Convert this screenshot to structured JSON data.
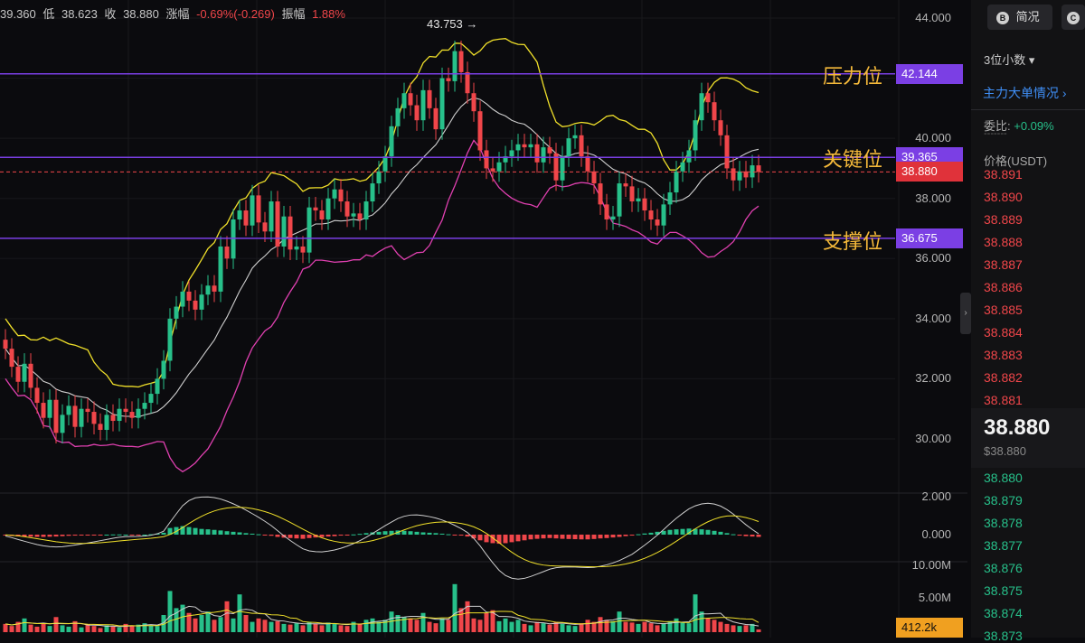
{
  "header": {
    "open_partial": "39.360",
    "low_label": "低",
    "low": "38.623",
    "close_label": "收",
    "close": "38.880",
    "change_label": "涨幅",
    "change": "-0.69%(-0.269)",
    "amp_label": "振幅",
    "amp": "1.88%"
  },
  "annotations": {
    "peak_value": "43.753",
    "peak_arrow": "→",
    "resistance_text": "压力位",
    "key_text": "关键位",
    "support_text": "支撑位"
  },
  "price_tags": {
    "resistance": "42.144",
    "key": "39.365",
    "current": "38.880",
    "support": "36.675",
    "volume": "412.2k"
  },
  "axis": {
    "price": [
      "44.000",
      "42.000",
      "40.000",
      "38.000",
      "36.000",
      "34.000",
      "32.000",
      "30.000"
    ],
    "macd": [
      "2.000",
      "0.000"
    ],
    "volume": [
      "10.00M",
      "5.00M"
    ]
  },
  "colors": {
    "up": "#27c08a",
    "down": "#f0464a",
    "level_line": "#7b3fe4",
    "upper_band": "#f0e02a",
    "mid_band": "#cfcfcf",
    "lower_band": "#e040b0",
    "label_gold": "#f5b93a",
    "panel_accent": "#3f8ef5"
  },
  "panel": {
    "btn_simple": "简况",
    "btn_simple_icon": "B",
    "btn_other_icon": "C",
    "decimals": "3位小数",
    "decimals_arrow": "▾",
    "big_orders": "主力大单情况",
    "big_orders_arrow": "›",
    "commission_label": "委比:",
    "commission_value": "+0.09%",
    "commission_dash": "-------",
    "price_header": "价格(USDT)",
    "asks": [
      "38.891",
      "38.890",
      "38.889",
      "38.888",
      "38.887",
      "38.886",
      "38.885",
      "38.884",
      "38.883",
      "38.882",
      "38.881"
    ],
    "last_price": "38.880",
    "last_price_usd": "$38.880",
    "bids": [
      "38.880",
      "38.879",
      "38.878",
      "38.877",
      "38.876",
      "38.875",
      "38.874",
      "38.873"
    ],
    "collapse_icon": "›"
  },
  "chart_data": {
    "type": "candlestick",
    "indicators": [
      "bollinger_bands",
      "macd",
      "volume"
    ],
    "ylim": [
      28.6,
      44.4
    ],
    "peak": 43.753,
    "levels": {
      "resistance": 42.144,
      "key": 39.365,
      "support": 36.675,
      "current": 38.88
    },
    "closes": [
      33.0,
      32.4,
      31.9,
      32.5,
      31.7,
      31.2,
      30.7,
      31.3,
      30.2,
      30.8,
      31.1,
      30.4,
      31.0,
      30.9,
      30.5,
      30.3,
      30.8,
      30.6,
      31.0,
      30.9,
      30.7,
      31.0,
      31.2,
      31.5,
      32.0,
      32.6,
      34.0,
      34.4,
      34.9,
      34.6,
      34.3,
      34.8,
      35.1,
      34.9,
      36.4,
      36.0,
      37.3,
      37.6,
      37.1,
      38.1,
      37.2,
      36.9,
      37.9,
      36.4,
      37.4,
      36.3,
      36.4,
      36.2,
      37.7,
      37.6,
      37.3,
      38.0,
      38.3,
      37.9,
      37.4,
      37.5,
      37.3,
      37.9,
      38.5,
      38.9,
      39.4,
      40.4,
      41.0,
      41.5,
      41.1,
      40.6,
      41.6,
      41.0,
      40.3,
      42.0,
      41.9,
      42.9,
      42.2,
      41.5,
      40.9,
      39.6,
      39.0,
      38.9,
      39.2,
      39.4,
      39.6,
      39.8,
      39.7,
      39.8,
      39.2,
      39.7,
      39.5,
      38.6,
      39.4,
      40.0,
      40.1,
      39.4,
      38.9,
      38.5,
      37.8,
      37.3,
      37.4,
      38.5,
      38.4,
      37.9,
      38.0,
      37.6,
      37.3,
      37.1,
      37.8,
      38.2,
      38.9,
      39.2,
      39.6,
      40.6,
      41.5,
      41.2,
      40.6,
      40.1,
      39.0,
      38.6,
      38.9,
      38.7,
      39.1,
      38.88
    ],
    "macd_hist": [
      -0.05,
      -0.07,
      -0.09,
      -0.1,
      -0.11,
      -0.12,
      -0.12,
      -0.11,
      -0.1,
      -0.08,
      -0.06,
      -0.05,
      -0.04,
      -0.03,
      -0.02,
      -0.01,
      0.0,
      0.01,
      0.01,
      0.0,
      -0.01,
      -0.01,
      0.0,
      0.02,
      0.05,
      0.1,
      0.35,
      0.4,
      0.45,
      0.4,
      0.35,
      0.3,
      0.28,
      0.25,
      0.22,
      0.18,
      0.15,
      0.12,
      0.08,
      0.05,
      0.02,
      -0.02,
      -0.06,
      -0.12,
      -0.16,
      -0.18,
      -0.2,
      -0.22,
      -0.18,
      -0.15,
      -0.13,
      -0.1,
      -0.08,
      -0.05,
      -0.02,
      0.01,
      0.04,
      0.08,
      0.12,
      0.15,
      0.18,
      0.2,
      0.22,
      0.2,
      0.18,
      0.15,
      0.12,
      0.1,
      0.08,
      0.05,
      0.02,
      -0.02,
      -0.05,
      -0.1,
      -0.2,
      -0.3,
      -0.4,
      -0.45,
      -0.48,
      -0.45,
      -0.4,
      -0.35,
      -0.3,
      -0.25,
      -0.22,
      -0.2,
      -0.18,
      -0.2,
      -0.22,
      -0.23,
      -0.24,
      -0.25,
      -0.25,
      -0.23,
      -0.2,
      -0.18,
      -0.15,
      -0.12,
      -0.08,
      -0.05,
      0.02,
      0.06,
      0.1,
      0.15,
      0.2,
      0.25,
      0.28,
      0.3,
      0.32,
      0.3,
      0.28,
      0.25,
      0.2,
      0.15,
      0.08,
      0.02,
      -0.05,
      -0.08,
      -0.1,
      -0.12
    ],
    "volume": [
      1.2,
      0.9,
      1.5,
      2.0,
      1.1,
      0.8,
      1.3,
      0.9,
      2.2,
      1.0,
      0.8,
      1.6,
      0.7,
      1.1,
      0.9,
      0.6,
      1.0,
      0.8,
      0.7,
      1.2,
      0.9,
      1.1,
      1.3,
      1.0,
      0.9,
      2.5,
      6.0,
      3.5,
      4.0,
      2.8,
      2.0,
      2.5,
      3.0,
      1.8,
      2.2,
      4.5,
      2.0,
      5.5,
      2.5,
      1.5,
      2.0,
      1.8,
      1.5,
      1.6,
      1.2,
      1.1,
      1.3,
      1.0,
      1.5,
      1.2,
      1.0,
      1.4,
      1.2,
      1.0,
      0.9,
      1.5,
      1.2,
      1.8,
      2.0,
      1.5,
      1.8,
      3.0,
      2.5,
      2.2,
      2.0,
      1.8,
      2.8,
      1.5,
      1.3,
      2.0,
      1.8,
      7.0,
      3.5,
      4.5,
      2.0,
      1.8,
      2.8,
      3.2,
      1.6,
      2.0,
      1.5,
      1.8,
      1.2,
      1.0,
      1.5,
      1.3,
      1.1,
      1.5,
      1.2,
      1.0,
      0.9,
      1.3,
      1.8,
      1.5,
      2.2,
      1.8,
      1.6,
      3.0,
      1.5,
      1.4,
      1.2,
      1.5,
      1.3,
      1.0,
      1.2,
      1.6,
      2.0,
      1.5,
      1.3,
      5.5,
      3.0,
      2.0,
      1.8,
      1.5,
      1.2,
      1.0,
      0.9,
      1.0,
      1.2,
      0.4
    ]
  }
}
